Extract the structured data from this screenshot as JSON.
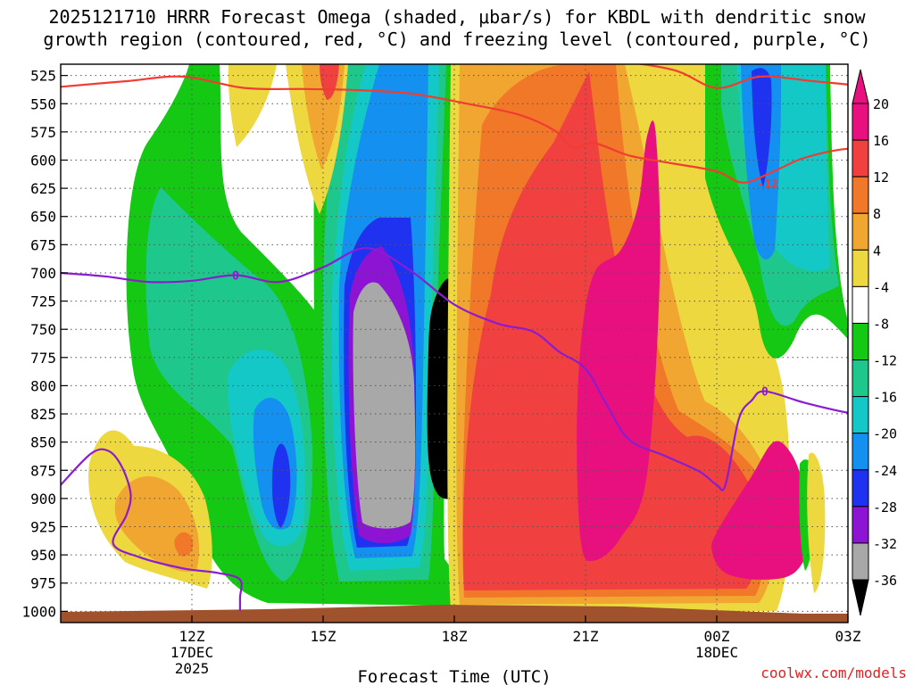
{
  "title_lines": [
    "2025121710 HRRR Forecast Omega (shaded, μbar/s) for KBDL with dendritic snow",
    "growth region (contoured, red, °C) and freezing level (contoured, purple, °C)"
  ],
  "credit": "coolwx.com/models",
  "colors": {
    "red_contour": "#f03c32",
    "purple_contour": "#8c1cd0",
    "ground": "#a0522d"
  },
  "chart_data": {
    "type": "heatmap",
    "title": "2025121710 HRRR Forecast Omega (shaded, μbar/s) for KBDL with dendritic snow growth region (contoured, red, °C) and freezing level (contoured, purple, °C)",
    "xlabel": "Forecast Time (UTC)",
    "ylabel": "",
    "x_range_hours": [
      9,
      27
    ],
    "y_range_hPa": [
      1010,
      515
    ],
    "y_ticks": [
      525,
      550,
      575,
      600,
      625,
      650,
      675,
      700,
      725,
      750,
      775,
      800,
      825,
      850,
      875,
      900,
      925,
      950,
      975,
      1000
    ],
    "x_ticks": [
      {
        "hour": 12,
        "lines": [
          "12Z",
          "17DEC",
          "2025"
        ]
      },
      {
        "hour": 15,
        "lines": [
          "15Z"
        ]
      },
      {
        "hour": 18,
        "lines": [
          "18Z"
        ]
      },
      {
        "hour": 21,
        "lines": [
          "21Z"
        ]
      },
      {
        "hour": 24,
        "lines": [
          "00Z",
          "18DEC"
        ]
      },
      {
        "hour": 27,
        "lines": [
          "03Z"
        ]
      }
    ],
    "colorbar": {
      "labels": [
        20,
        16,
        12,
        8,
        4,
        -4,
        -8,
        -12,
        -16,
        -20,
        -24,
        -28,
        -32,
        -36
      ],
      "colors": [
        "#e8107e",
        "#f04040",
        "#f07828",
        "#f0a630",
        "#eed840",
        "#ffffff",
        "#14c814",
        "#1ec88c",
        "#14c8c8",
        "#1490f0",
        "#1e32f0",
        "#8c14d2",
        "#a8a8a8",
        "#000000"
      ]
    },
    "grid": true,
    "shaded_regions": [
      {
        "name": "ascent core",
        "value": -36,
        "t": [
          17.5,
          17.9,
          18.3,
          18.6,
          18.6,
          18.3,
          18.0,
          17.6,
          17.4,
          17.4
        ],
        "p": [
          730,
          705,
          740,
          800,
          870,
          890,
          900,
          895,
          860,
          780
        ]
      },
      {
        "name": "descent core",
        "value": 20,
        "t": [
          21.2,
          21.8,
          22.2,
          22.4,
          22.6,
          22.7,
          22.4,
          21.8,
          21.2,
          20.9,
          20.8,
          20.9
        ],
        "p": [
          700,
          680,
          640,
          580,
          575,
          700,
          880,
          935,
          955,
          940,
          850,
          760
        ]
      },
      {
        "name": "descent near surface",
        "value": 20,
        "t": [
          24.0,
          24.8,
          25.3,
          25.7,
          26.0,
          26.2,
          25.8,
          25.0,
          24.2,
          23.9
        ],
        "p": [
          930,
          880,
          850,
          860,
          890,
          930,
          965,
          972,
          966,
          948
        ]
      }
    ],
    "red_contour": {
      "label": "-12",
      "label_hour": 25.0,
      "upper_t": [
        9.0,
        10.5,
        11.8,
        13.2,
        14.6,
        15.8,
        17.0,
        18.3,
        19.5,
        20.3,
        20.7,
        21.2,
        22.0,
        23.0,
        24.0,
        24.6,
        25.3,
        26.0,
        27.0,
        28.0
      ],
      "upper_p": [
        535,
        530,
        526,
        536,
        537,
        538,
        541,
        550,
        560,
        574,
        589,
        585,
        596,
        603,
        610,
        620,
        610,
        598,
        590,
        592
      ],
      "top_t": [
        20.0,
        21.5,
        23.0,
        24.0,
        25.0,
        26.2,
        27.5,
        28.0
      ],
      "top_p": [
        513,
        512,
        520,
        536,
        526,
        530,
        535,
        538
      ]
    },
    "purple_contour": {
      "label": "0",
      "label_hour": 13.0,
      "main_t": [
        9.0,
        10.0,
        11.0,
        12.0,
        13.0,
        14.0,
        15.0,
        16.0,
        17.0,
        18.0,
        19.0,
        19.8,
        20.4,
        21.0,
        21.5,
        22.0,
        22.8,
        23.6,
        24.0,
        24.2,
        24.5,
        24.8,
        25.1,
        26.0,
        27.0,
        28.0
      ],
      "main_p": [
        700,
        703,
        708,
        707,
        702,
        708,
        695,
        678,
        698,
        728,
        745,
        752,
        770,
        785,
        818,
        848,
        862,
        876,
        888,
        888,
        830,
        813,
        805,
        815,
        824,
        830
      ],
      "left_t": [
        9.0,
        9.7,
        10.1,
        10.4,
        10.6,
        10.5,
        10.2,
        10.8,
        11.8,
        12.6,
        13.1,
        13.1,
        13.1
      ],
      "left_p": [
        888,
        860,
        858,
        872,
        896,
        915,
        940,
        952,
        962,
        966,
        972,
        988,
        1000
      ]
    }
  }
}
